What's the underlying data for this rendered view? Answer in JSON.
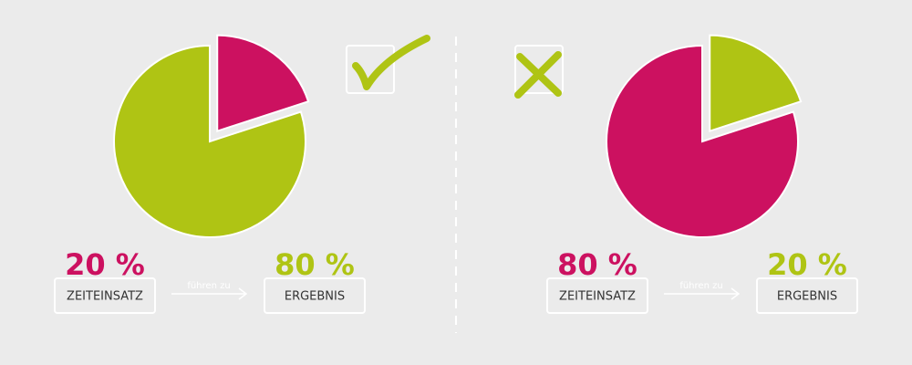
{
  "chart_data": [
    {
      "type": "pie",
      "categories": [
        "ZEITEINSATZ",
        "ERGEBNIS"
      ],
      "values": [
        20,
        80
      ],
      "value_labels": [
        "20 %",
        "80 %"
      ],
      "colors": [
        "#cc1160",
        "#afc414"
      ],
      "annotation": "führen zu"
    },
    {
      "type": "pie",
      "categories": [
        "ZEITEINSATZ",
        "ERGEBNIS"
      ],
      "values": [
        80,
        20
      ],
      "value_labels": [
        "80 %",
        "20 %"
      ],
      "colors": [
        "#cc1160",
        "#afc414"
      ],
      "annotation": "führen zu"
    }
  ]
}
